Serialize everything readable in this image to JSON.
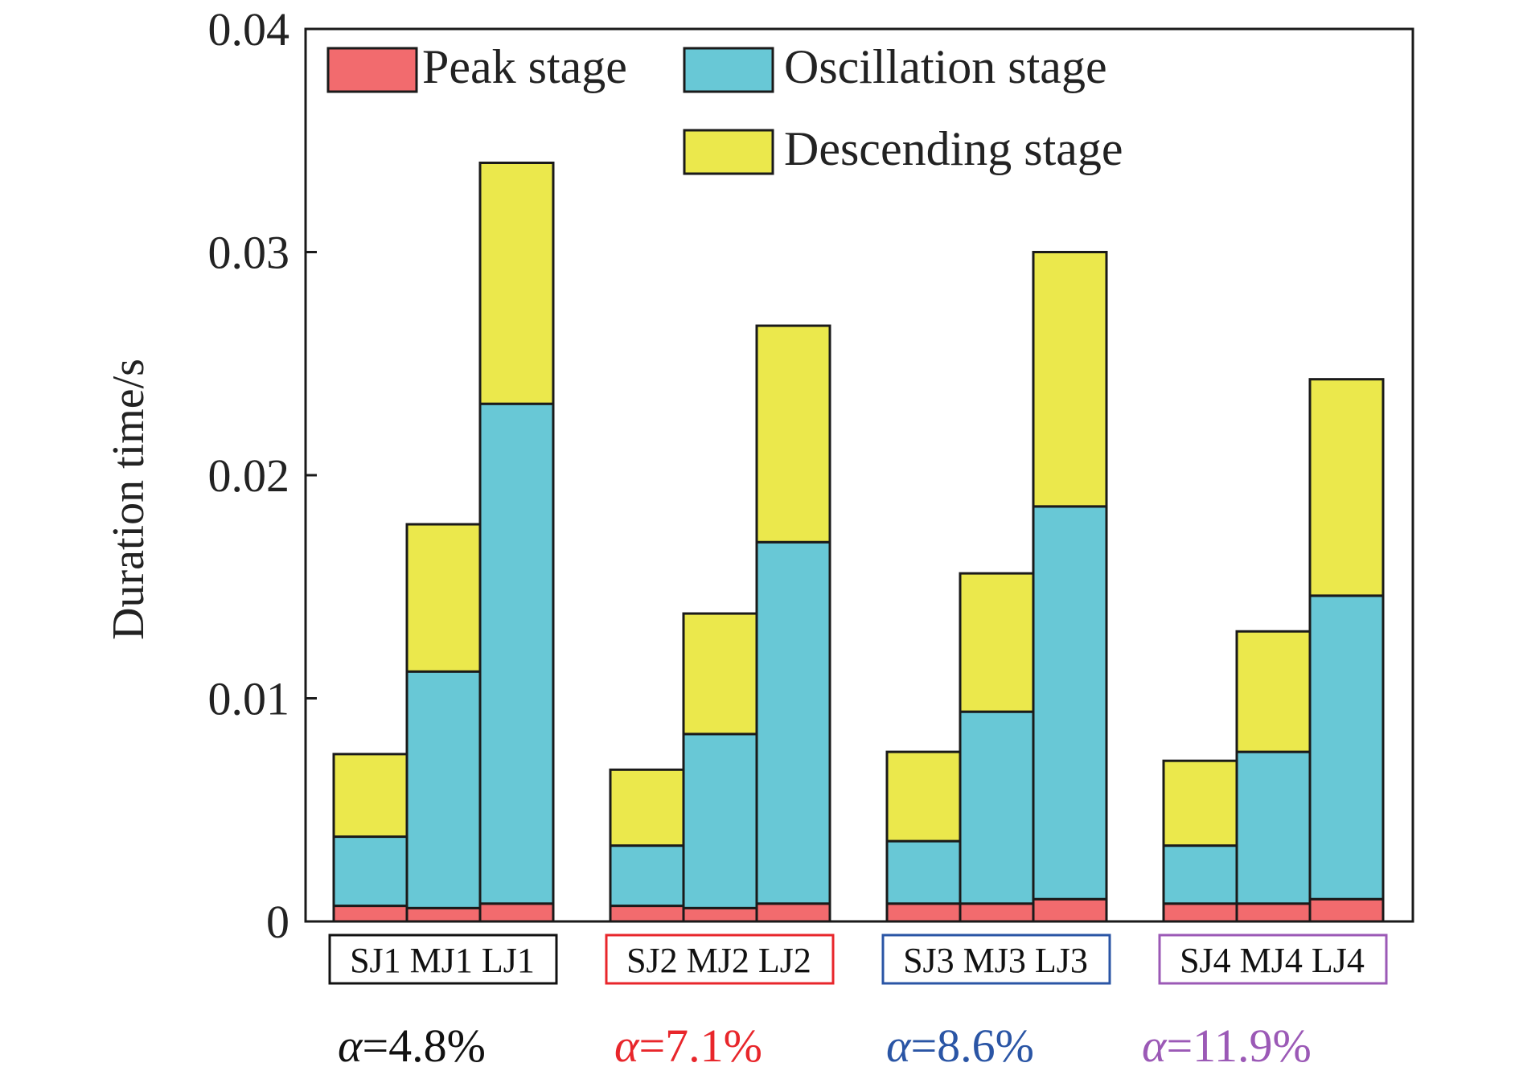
{
  "chart_data": {
    "type": "bar",
    "stacked": true,
    "ylabel": "Duration time/s",
    "xlabel": "",
    "ylim": [
      0,
      0.04
    ],
    "yticks": [
      "0",
      "0.01",
      "0.02",
      "0.03",
      "0.04"
    ],
    "grid": false,
    "legend_position": "top",
    "categories": [
      "SJ1",
      "MJ1",
      "LJ1",
      "SJ2",
      "MJ2",
      "LJ2",
      "SJ3",
      "MJ3",
      "LJ3",
      "SJ4",
      "MJ4",
      "LJ4"
    ],
    "series": [
      {
        "name": "Peak stage",
        "color": "#f26b6e",
        "values": [
          0.0007,
          0.0006,
          0.0008,
          0.0007,
          0.0006,
          0.0008,
          0.0008,
          0.0008,
          0.001,
          0.0008,
          0.0008,
          0.001
        ]
      },
      {
        "name": "Oscillation stage",
        "color": "#68c8d6",
        "values": [
          0.0031,
          0.0106,
          0.0224,
          0.0027,
          0.0078,
          0.0162,
          0.0028,
          0.0086,
          0.0176,
          0.0026,
          0.0068,
          0.0136
        ]
      },
      {
        "name": "Descending stage",
        "color": "#ebe84c",
        "values": [
          0.0037,
          0.0066,
          0.0108,
          0.0034,
          0.0054,
          0.0097,
          0.004,
          0.0062,
          0.0114,
          0.0038,
          0.0054,
          0.0097
        ]
      }
    ],
    "groups": [
      {
        "labels": "SJ1 MJ1 LJ1",
        "alpha": "α=4.8%",
        "color": "#111111"
      },
      {
        "labels": "SJ2 MJ2 LJ2",
        "alpha": "α=7.1%",
        "color": "#e8262b"
      },
      {
        "labels": "SJ3 MJ3 LJ3",
        "alpha": "α=8.6%",
        "color": "#2a55a5"
      },
      {
        "labels": "SJ4 MJ4 LJ4",
        "alpha": "α=11.9%",
        "color": "#9b59b6"
      }
    ]
  }
}
